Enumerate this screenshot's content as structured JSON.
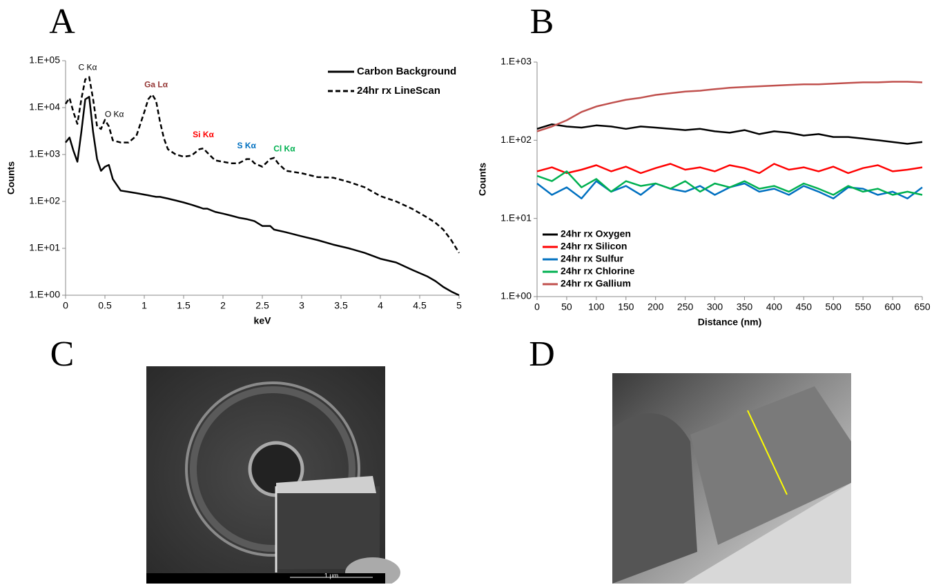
{
  "chart_data": [
    {
      "type": "line",
      "panel": "A",
      "log_y": true,
      "grid": false,
      "legend": "top-right",
      "xlabel": "keV",
      "ylabel": "Counts",
      "x": [
        0,
        0.05,
        0.1,
        0.15,
        0.2,
        0.25,
        0.3,
        0.35,
        0.4,
        0.45,
        0.5,
        0.55,
        0.6,
        0.7,
        0.8,
        0.9,
        1.0,
        1.05,
        1.1,
        1.15,
        1.2,
        1.25,
        1.3,
        1.4,
        1.5,
        1.6,
        1.7,
        1.75,
        1.8,
        1.9,
        2.0,
        2.1,
        2.2,
        2.3,
        2.35,
        2.4,
        2.5,
        2.6,
        2.65,
        2.7,
        2.8,
        3.0,
        3.2,
        3.4,
        3.6,
        3.8,
        4.0,
        4.2,
        4.4,
        4.6,
        4.7,
        4.8,
        4.9,
        5.0
      ],
      "series": [
        {
          "name": "Carbon Background",
          "color": "#000000",
          "dashed": false,
          "values": [
            1800,
            2300,
            1200,
            700,
            3000,
            15000,
            17000,
            3000,
            800,
            450,
            550,
            600,
            300,
            170,
            160,
            150,
            140,
            135,
            130,
            125,
            125,
            120,
            115,
            105,
            95,
            85,
            75,
            70,
            70,
            60,
            55,
            50,
            45,
            42,
            40,
            38,
            30,
            30,
            25,
            24,
            22,
            18,
            15,
            12,
            10,
            8,
            6,
            5,
            3.5,
            2.5,
            2,
            1.5,
            1.2,
            1
          ]
        },
        {
          "name": "24hr rx LineScan",
          "color": "#000000",
          "dashed": true,
          "values": [
            12000,
            16000,
            8000,
            4500,
            15000,
            40000,
            45000,
            15000,
            4000,
            3500,
            5500,
            4000,
            2000,
            1800,
            1800,
            2500,
            8000,
            15000,
            19000,
            14000,
            5000,
            2200,
            1300,
            1000,
            900,
            950,
            1300,
            1350,
            1100,
            750,
            700,
            650,
            650,
            800,
            800,
            650,
            550,
            800,
            850,
            650,
            450,
            400,
            330,
            320,
            260,
            200,
            130,
            100,
            70,
            45,
            35,
            25,
            15,
            8
          ]
        }
      ],
      "annotations": [
        {
          "text": "C Kα",
          "color": "#000000"
        },
        {
          "text": "O Kα",
          "color": "#000000"
        },
        {
          "text": "Ga Lα",
          "color": "#953735"
        },
        {
          "text": "Si Kα",
          "color": "#ff0000"
        },
        {
          "text": "S Kα",
          "color": "#0070c0"
        },
        {
          "text": "Cl  Kα",
          "color": "#00b050"
        }
      ],
      "xlim": [
        0,
        5
      ],
      "xticks": [
        0,
        0.5,
        1,
        1.5,
        2,
        2.5,
        3,
        3.5,
        4,
        4.5,
        5
      ],
      "ylim": [
        1,
        100000
      ],
      "yticks": [
        {
          "value": 1,
          "label": "1.E+00"
        },
        {
          "value": 10,
          "label": "1.E+01"
        },
        {
          "value": 100,
          "label": "1.E+02"
        },
        {
          "value": 1000,
          "label": "1.E+03"
        },
        {
          "value": 10000,
          "label": "1.E+04"
        },
        {
          "value": 100000,
          "label": "1.E+05"
        }
      ]
    },
    {
      "type": "line",
      "panel": "B",
      "log_y": true,
      "grid": false,
      "legend": "bottom-left",
      "xlabel": "Distance (nm)",
      "ylabel": "Counts",
      "x": [
        0,
        25,
        50,
        75,
        100,
        125,
        150,
        175,
        200,
        225,
        250,
        275,
        300,
        325,
        350,
        375,
        400,
        425,
        450,
        475,
        500,
        525,
        550,
        575,
        600,
        625,
        650
      ],
      "series": [
        {
          "name": "24hr rx Oxygen",
          "color": "#000000",
          "values": [
            140,
            160,
            150,
            145,
            155,
            150,
            140,
            150,
            145,
            140,
            135,
            140,
            130,
            125,
            135,
            120,
            130,
            125,
            115,
            120,
            110,
            110,
            105,
            100,
            95,
            90,
            95
          ]
        },
        {
          "name": "24hr rx Silicon",
          "color": "#ff0000",
          "values": [
            40,
            45,
            38,
            42,
            48,
            40,
            46,
            38,
            44,
            50,
            42,
            45,
            40,
            48,
            44,
            38,
            50,
            42,
            45,
            40,
            46,
            38,
            44,
            48,
            40,
            42,
            45
          ]
        },
        {
          "name": "24hr rx Sulfur",
          "color": "#0070c0",
          "values": [
            28,
            20,
            25,
            18,
            30,
            22,
            26,
            20,
            28,
            24,
            22,
            26,
            20,
            25,
            28,
            22,
            24,
            20,
            26,
            22,
            18,
            25,
            24,
            20,
            22,
            18,
            25
          ]
        },
        {
          "name": "24hr rx Chlorine",
          "color": "#00b050",
          "values": [
            35,
            30,
            40,
            25,
            32,
            22,
            30,
            26,
            28,
            24,
            30,
            22,
            28,
            25,
            30,
            24,
            26,
            22,
            28,
            24,
            20,
            26,
            22,
            24,
            20,
            22,
            20
          ]
        },
        {
          "name": "24hr rx Gallium",
          "color": "#c0504d",
          "values": [
            130,
            150,
            180,
            230,
            270,
            300,
            330,
            350,
            380,
            400,
            420,
            430,
            450,
            470,
            480,
            490,
            500,
            510,
            520,
            520,
            530,
            540,
            550,
            550,
            560,
            560,
            550
          ]
        }
      ],
      "xlim": [
        0,
        650
      ],
      "xticks": [
        0,
        50,
        100,
        150,
        200,
        250,
        300,
        350,
        400,
        450,
        500,
        550,
        600,
        650
      ],
      "ylim": [
        1,
        1000
      ],
      "yticks": [
        {
          "value": 1,
          "label": "1.E+00"
        },
        {
          "value": 10,
          "label": "1.E+01"
        },
        {
          "value": 100,
          "label": "1.E+02"
        },
        {
          "value": 1000,
          "label": "1.E+03"
        }
      ]
    }
  ],
  "images": [
    {
      "panel": "C",
      "scale_bar": "1 μm"
    },
    {
      "panel": "D"
    }
  ]
}
